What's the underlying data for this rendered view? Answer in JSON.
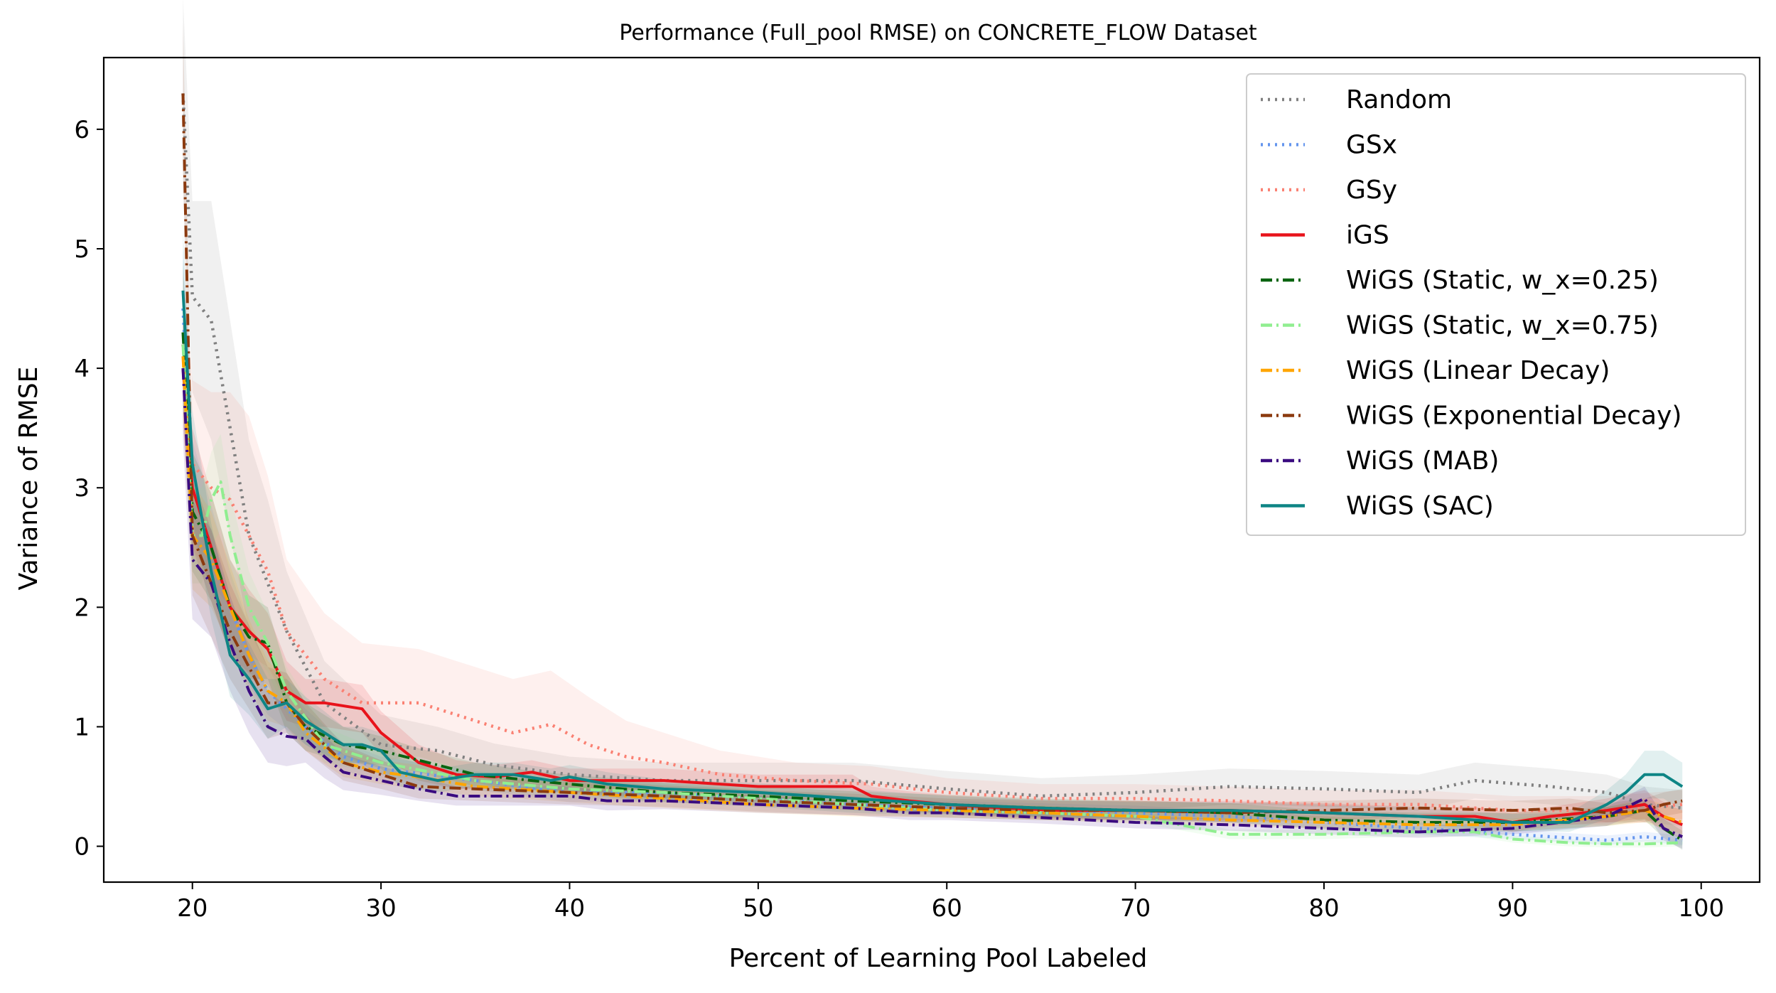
{
  "chart_data": {
    "type": "line",
    "title": "Performance (Full_pool RMSE) on CONCRETE_FLOW Dataset",
    "xlabel": "Percent of Learning Pool Labeled",
    "ylabel": "Variance of RMSE",
    "xlim": [
      15.3,
      103.1
    ],
    "ylim": [
      -0.3,
      6.6
    ],
    "xticks": [
      20,
      30,
      40,
      50,
      60,
      70,
      80,
      90,
      100
    ],
    "yticks": [
      0,
      1,
      2,
      3,
      4,
      5,
      6
    ],
    "xtick_labels": [
      "20",
      "30",
      "40",
      "50",
      "60",
      "70",
      "80",
      "90",
      "100"
    ],
    "ytick_labels": [
      "0",
      "1",
      "2",
      "3",
      "4",
      "5",
      "6"
    ],
    "legend_position": "top-right",
    "series": [
      {
        "name": "Random",
        "color": "#808080",
        "dash": "dotted",
        "x": [
          19.5,
          20,
          21,
          22,
          23,
          24,
          25,
          27,
          30,
          33,
          36,
          40,
          45,
          50,
          55,
          60,
          65,
          70,
          75,
          80,
          85,
          88,
          92,
          95,
          97,
          99
        ],
        "y": [
          6.3,
          4.6,
          4.4,
          3.5,
          2.6,
          2.2,
          1.8,
          1.2,
          0.85,
          0.8,
          0.68,
          0.6,
          0.55,
          0.55,
          0.55,
          0.48,
          0.42,
          0.45,
          0.5,
          0.48,
          0.45,
          0.55,
          0.5,
          0.45,
          0.35,
          0.32
        ],
        "band": [
          0.8,
          0.8,
          1.0,
          0.9,
          0.8,
          0.7,
          0.5,
          0.35,
          0.25,
          0.2,
          0.18,
          0.15,
          0.15,
          0.15,
          0.15,
          0.15,
          0.15,
          0.15,
          0.15,
          0.15,
          0.15,
          0.15,
          0.15,
          0.15,
          0.15,
          0.15
        ]
      },
      {
        "name": "GSx",
        "color": "#6495ed",
        "dash": "dotted",
        "x": [
          19.5,
          20,
          21,
          22,
          23,
          24,
          26,
          28,
          30,
          35,
          40,
          45,
          50,
          55,
          60,
          65,
          70,
          75,
          80,
          85,
          90,
          95,
          97,
          99
        ],
        "y": [
          4.5,
          3.0,
          2.5,
          2.0,
          1.6,
          1.3,
          1.0,
          0.75,
          0.65,
          0.55,
          0.45,
          0.45,
          0.4,
          0.35,
          0.32,
          0.3,
          0.28,
          0.25,
          0.2,
          0.15,
          0.1,
          0.05,
          0.08,
          0.05
        ],
        "band": [
          0.5,
          0.4,
          0.35,
          0.3,
          0.25,
          0.2,
          0.15,
          0.12,
          0.1,
          0.08,
          0.08,
          0.08,
          0.07,
          0.07,
          0.06,
          0.06,
          0.06,
          0.05,
          0.05,
          0.05,
          0.04,
          0.04,
          0.04,
          0.04
        ]
      },
      {
        "name": "GSy",
        "color": "#fa8072",
        "dash": "dotted",
        "x": [
          19.5,
          20,
          21,
          22,
          23,
          24,
          25,
          27,
          29,
          32,
          35,
          37,
          39,
          41,
          43,
          45,
          48,
          52,
          56,
          60,
          65,
          70,
          75,
          80,
          85,
          90,
          95,
          99
        ],
        "y": [
          4.2,
          3.2,
          3.0,
          2.9,
          2.6,
          2.3,
          1.8,
          1.4,
          1.2,
          1.2,
          1.05,
          0.95,
          1.02,
          0.85,
          0.75,
          0.7,
          0.6,
          0.55,
          0.52,
          0.45,
          0.4,
          0.4,
          0.38,
          0.35,
          0.35,
          0.3,
          0.3,
          0.35
        ],
        "band": [
          0.6,
          0.7,
          0.8,
          0.9,
          1.0,
          0.8,
          0.6,
          0.55,
          0.5,
          0.45,
          0.45,
          0.45,
          0.45,
          0.4,
          0.3,
          0.25,
          0.2,
          0.15,
          0.15,
          0.12,
          0.12,
          0.12,
          0.12,
          0.12,
          0.12,
          0.12,
          0.12,
          0.12
        ]
      },
      {
        "name": "iGS",
        "color": "#e8131b",
        "dash": "solid",
        "x": [
          19.5,
          20,
          21,
          22,
          23,
          24,
          25,
          26,
          27,
          29,
          30,
          32,
          34,
          36,
          38,
          40,
          42,
          45,
          48,
          50,
          53,
          55,
          56,
          58,
          60,
          63,
          66,
          70,
          75,
          80,
          85,
          88,
          90,
          92,
          95,
          97,
          98,
          99
        ],
        "y": [
          4.0,
          3.0,
          2.5,
          2.0,
          1.8,
          1.65,
          1.3,
          1.2,
          1.2,
          1.15,
          0.95,
          0.7,
          0.6,
          0.58,
          0.62,
          0.55,
          0.55,
          0.55,
          0.52,
          0.5,
          0.5,
          0.5,
          0.42,
          0.38,
          0.35,
          0.32,
          0.3,
          0.3,
          0.3,
          0.28,
          0.25,
          0.25,
          0.2,
          0.25,
          0.3,
          0.35,
          0.25,
          0.18
        ],
        "band": [
          0.5,
          0.5,
          0.45,
          0.4,
          0.35,
          0.3,
          0.25,
          0.2,
          0.2,
          0.2,
          0.18,
          0.15,
          0.12,
          0.1,
          0.1,
          0.1,
          0.1,
          0.1,
          0.1,
          0.1,
          0.1,
          0.1,
          0.08,
          0.08,
          0.08,
          0.08,
          0.08,
          0.08,
          0.08,
          0.08,
          0.08,
          0.08,
          0.08,
          0.08,
          0.1,
          0.12,
          0.12,
          0.12
        ]
      },
      {
        "name": "WiGS (Static, w_x=0.25)",
        "color": "#0a6410",
        "dash": "dashdot",
        "x": [
          19.5,
          20,
          21,
          22,
          23,
          24,
          25,
          26,
          28,
          30,
          32,
          35,
          38,
          40,
          45,
          50,
          55,
          60,
          65,
          70,
          75,
          80,
          85,
          90,
          95,
          97,
          98,
          99
        ],
        "y": [
          4.3,
          2.8,
          2.5,
          2.0,
          1.75,
          1.7,
          1.2,
          1.0,
          0.85,
          0.8,
          0.72,
          0.6,
          0.55,
          0.52,
          0.45,
          0.42,
          0.38,
          0.35,
          0.32,
          0.3,
          0.28,
          0.22,
          0.2,
          0.2,
          0.25,
          0.3,
          0.15,
          0.05
        ],
        "band": [
          0.6,
          0.5,
          0.45,
          0.4,
          0.35,
          0.3,
          0.25,
          0.2,
          0.15,
          0.12,
          0.1,
          0.1,
          0.08,
          0.08,
          0.08,
          0.08,
          0.08,
          0.08,
          0.08,
          0.08,
          0.08,
          0.08,
          0.08,
          0.08,
          0.08,
          0.08,
          0.08,
          0.08
        ]
      },
      {
        "name": "WiGS (Static, w_x=0.75)",
        "color": "#90ee90",
        "dash": "dashdot",
        "x": [
          19.5,
          20,
          20.5,
          21,
          21.5,
          22,
          23,
          24,
          25,
          27,
          30,
          35,
          40,
          45,
          50,
          55,
          60,
          65,
          70,
          75,
          80,
          85,
          88,
          90,
          93,
          95,
          97,
          99
        ],
        "y": [
          4.2,
          2.6,
          2.6,
          2.9,
          3.05,
          2.6,
          2.0,
          1.7,
          1.3,
          0.85,
          0.7,
          0.55,
          0.48,
          0.45,
          0.4,
          0.35,
          0.3,
          0.28,
          0.25,
          0.1,
          0.1,
          0.12,
          0.12,
          0.06,
          0.03,
          0.02,
          0.02,
          0.03
        ],
        "band": [
          0.5,
          0.4,
          0.4,
          0.4,
          0.4,
          0.35,
          0.3,
          0.25,
          0.2,
          0.15,
          0.1,
          0.08,
          0.08,
          0.08,
          0.07,
          0.07,
          0.06,
          0.06,
          0.05,
          0.04,
          0.04,
          0.04,
          0.04,
          0.03,
          0.03,
          0.03,
          0.03,
          0.03
        ]
      },
      {
        "name": "WiGS (Linear Decay)",
        "color": "#ffa500",
        "dash": "dashdot",
        "x": [
          19.5,
          20,
          21,
          22,
          23,
          24,
          25,
          26,
          28,
          30,
          32,
          35,
          40,
          45,
          50,
          55,
          60,
          65,
          70,
          75,
          80,
          85,
          90,
          95,
          97,
          99
        ],
        "y": [
          4.1,
          2.6,
          2.4,
          2.0,
          1.6,
          1.3,
          1.2,
          0.95,
          0.7,
          0.62,
          0.58,
          0.5,
          0.45,
          0.4,
          0.35,
          0.32,
          0.3,
          0.28,
          0.25,
          0.22,
          0.2,
          0.18,
          0.18,
          0.25,
          0.3,
          0.2
        ],
        "band": [
          0.5,
          0.45,
          0.4,
          0.35,
          0.3,
          0.25,
          0.2,
          0.15,
          0.12,
          0.1,
          0.1,
          0.08,
          0.08,
          0.08,
          0.07,
          0.07,
          0.06,
          0.06,
          0.06,
          0.05,
          0.05,
          0.05,
          0.05,
          0.08,
          0.1,
          0.1
        ]
      },
      {
        "name": "WiGS (Exponential Decay)",
        "color": "#8b3a0f",
        "dash": "dashdot",
        "x": [
          19.5,
          20,
          21,
          22,
          23,
          24,
          25,
          26,
          28,
          30,
          32,
          35,
          40,
          45,
          50,
          55,
          60,
          65,
          70,
          75,
          80,
          85,
          90,
          93,
          95,
          97,
          98,
          99
        ],
        "y": [
          6.3,
          2.6,
          2.2,
          1.8,
          1.5,
          1.2,
          1.2,
          1.0,
          0.7,
          0.6,
          0.5,
          0.48,
          0.45,
          0.42,
          0.38,
          0.35,
          0.32,
          0.3,
          0.3,
          0.28,
          0.3,
          0.32,
          0.3,
          0.32,
          0.28,
          0.3,
          0.35,
          0.38
        ],
        "band": [
          0.6,
          0.5,
          0.45,
          0.4,
          0.35,
          0.3,
          0.25,
          0.2,
          0.15,
          0.12,
          0.1,
          0.1,
          0.1,
          0.09,
          0.09,
          0.09,
          0.08,
          0.08,
          0.08,
          0.08,
          0.08,
          0.08,
          0.08,
          0.08,
          0.08,
          0.1,
          0.1,
          0.1
        ]
      },
      {
        "name": "WiGS (MAB)",
        "color": "#3a0b80",
        "dash": "dashdot",
        "x": [
          19.5,
          20,
          21,
          22,
          23,
          24,
          25,
          26,
          27,
          28,
          30,
          32,
          34,
          36,
          38,
          40,
          42,
          45,
          50,
          55,
          58,
          60,
          65,
          70,
          75,
          80,
          85,
          90,
          95,
          97,
          98,
          99
        ],
        "y": [
          4.0,
          2.4,
          2.2,
          1.7,
          1.3,
          1.0,
          0.92,
          0.9,
          0.75,
          0.62,
          0.55,
          0.48,
          0.42,
          0.42,
          0.42,
          0.42,
          0.38,
          0.38,
          0.35,
          0.32,
          0.28,
          0.28,
          0.24,
          0.2,
          0.18,
          0.15,
          0.12,
          0.15,
          0.25,
          0.4,
          0.15,
          0.08
        ],
        "band": [
          0.6,
          0.5,
          0.45,
          0.4,
          0.35,
          0.3,
          0.25,
          0.2,
          0.18,
          0.15,
          0.12,
          0.1,
          0.08,
          0.08,
          0.08,
          0.08,
          0.08,
          0.07,
          0.07,
          0.06,
          0.06,
          0.06,
          0.05,
          0.05,
          0.05,
          0.05,
          0.05,
          0.05,
          0.08,
          0.1,
          0.1,
          0.1
        ]
      },
      {
        "name": "WiGS (SAC)",
        "color": "#0e8585",
        "dash": "solid",
        "x": [
          19.5,
          20,
          21,
          22,
          23,
          24,
          25,
          26,
          27,
          28,
          29,
          30,
          31,
          33,
          35,
          37,
          39,
          40,
          42,
          45,
          50,
          55,
          60,
          65,
          70,
          75,
          80,
          85,
          90,
          93,
          95,
          96,
          97,
          98,
          99
        ],
        "y": [
          4.65,
          3.2,
          2.3,
          1.6,
          1.4,
          1.15,
          1.2,
          1.05,
          0.95,
          0.85,
          0.85,
          0.8,
          0.62,
          0.55,
          0.6,
          0.6,
          0.55,
          0.58,
          0.52,
          0.48,
          0.45,
          0.4,
          0.35,
          0.32,
          0.3,
          0.3,
          0.28,
          0.25,
          0.2,
          0.2,
          0.35,
          0.45,
          0.6,
          0.6,
          0.5
        ],
        "band": [
          0.5,
          0.45,
          0.4,
          0.35,
          0.3,
          0.25,
          0.2,
          0.2,
          0.18,
          0.15,
          0.15,
          0.15,
          0.12,
          0.1,
          0.1,
          0.1,
          0.1,
          0.1,
          0.1,
          0.08,
          0.08,
          0.08,
          0.07,
          0.07,
          0.07,
          0.07,
          0.07,
          0.07,
          0.07,
          0.08,
          0.12,
          0.15,
          0.2,
          0.2,
          0.2
        ]
      }
    ]
  }
}
